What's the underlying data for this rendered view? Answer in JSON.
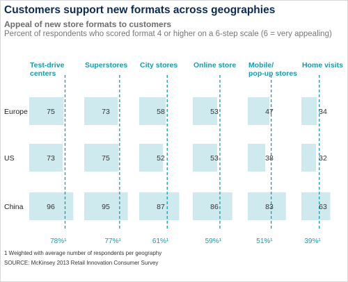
{
  "header": {
    "title": "Customers support new formats across geographies",
    "subtitle": "Appeal of new store formats to customers",
    "description": "Percent of respondents who scored format 4 or higher on a 6-step scale (6 = very appealing)"
  },
  "chart_data": {
    "type": "bar",
    "formats": [
      {
        "name": [
          "Test-drive",
          "centers"
        ],
        "total": "78%¹"
      },
      {
        "name": [
          "Superstores"
        ],
        "total": "77%¹"
      },
      {
        "name": [
          "City stores"
        ],
        "total": "61%¹"
      },
      {
        "name": [
          "Online store"
        ],
        "total": "59%¹"
      },
      {
        "name": [
          "Mobile/",
          "pop-up stores"
        ],
        "total": "51%¹"
      },
      {
        "name": [
          "Home visits"
        ],
        "total": "39%¹"
      }
    ],
    "weighted_average": [
      78,
      77,
      61,
      59,
      51,
      39
    ],
    "geographies": [
      "Europe",
      "US",
      "China"
    ],
    "values": [
      [
        75,
        73,
        58,
        53,
        47,
        34
      ],
      [
        73,
        75,
        52,
        53,
        38,
        32
      ],
      [
        96,
        95,
        87,
        86,
        83,
        63
      ]
    ],
    "xlim": [
      0,
      100
    ],
    "colors": {
      "bar": "#cfeaee",
      "line": "#1a9bab",
      "header": "#1a9bab",
      "value": "#333333"
    }
  },
  "footer": {
    "footnote": "1 Weighted with average number of respondents per geography",
    "source": "SOURCE: McKinsey 2013 Retail Innovation Consumer Survey"
  }
}
